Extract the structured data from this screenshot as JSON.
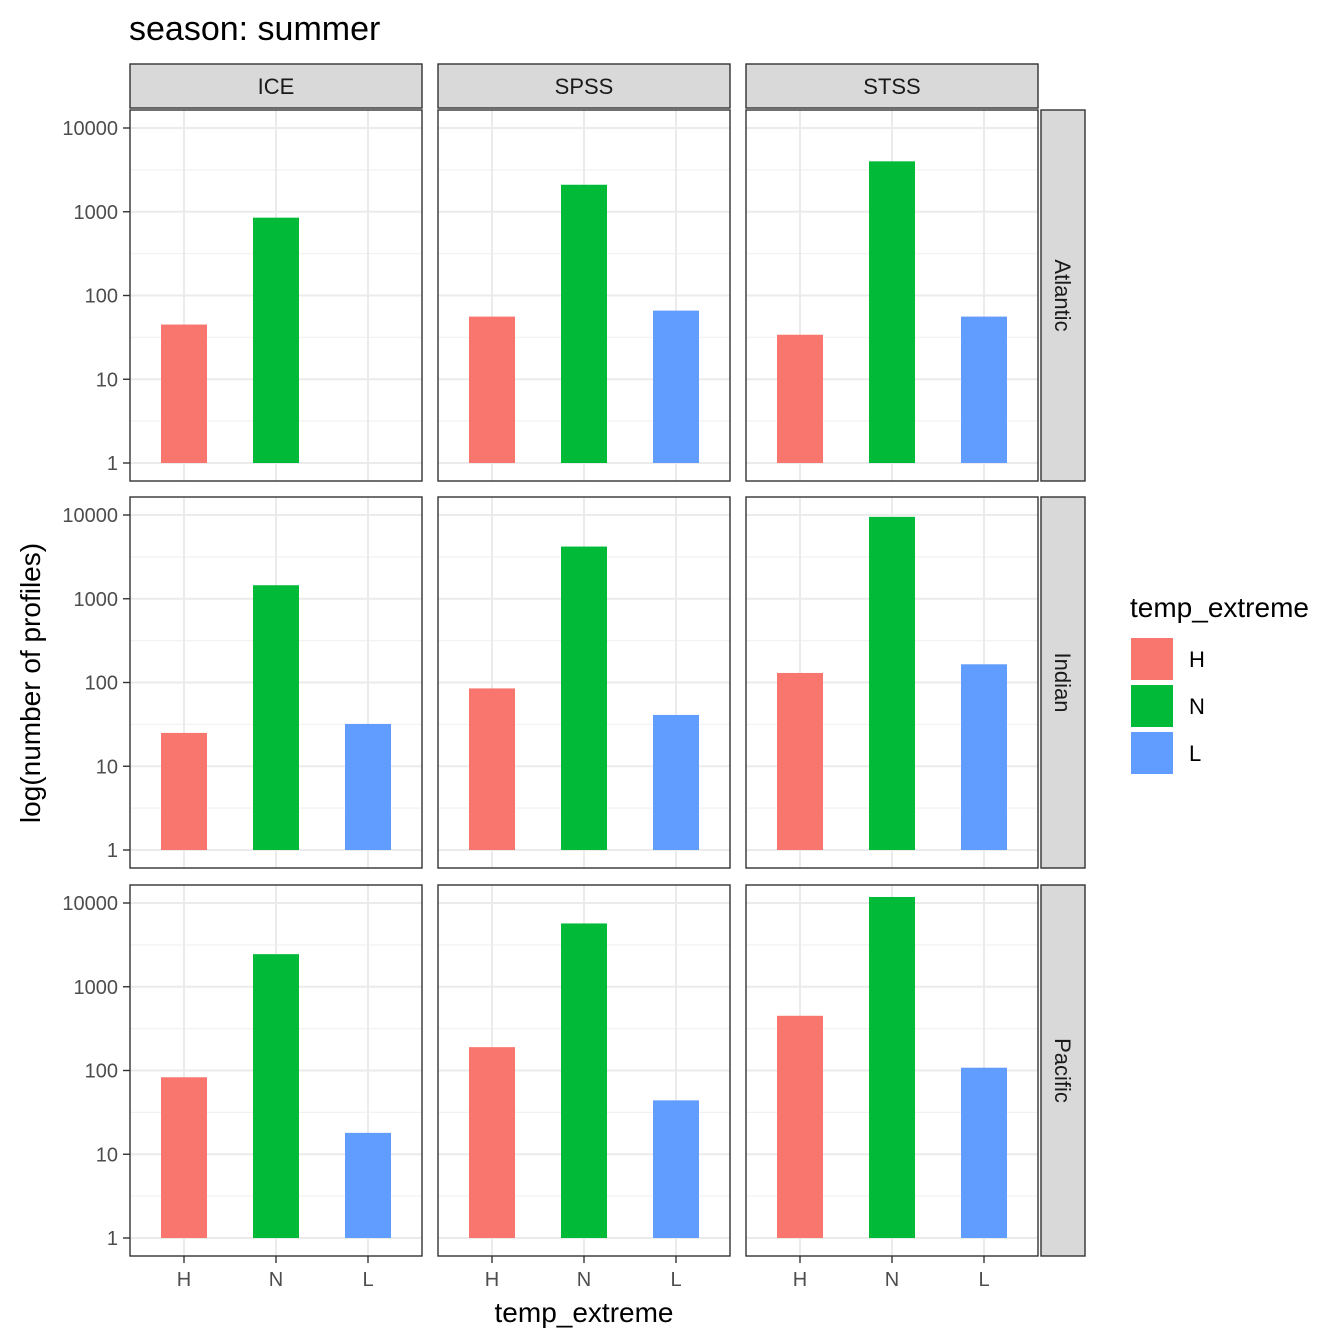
{
  "chart_data": {
    "type": "bar",
    "title": "season: summer",
    "xlabel": "temp_extreme",
    "ylabel": "log(number of profiles)",
    "y_scale": "log10",
    "ylim": [
      1,
      10000
    ],
    "y_ticks": [
      1,
      10,
      100,
      1000,
      10000
    ],
    "y_tick_labels": [
      "1",
      "10",
      "100",
      "1000",
      "10000"
    ],
    "categories": [
      "H",
      "N",
      "L"
    ],
    "col_facets": [
      "ICE",
      "SPSS",
      "STSS"
    ],
    "row_facets": [
      "Atlantic",
      "Indian",
      "Pacific"
    ],
    "grid": true,
    "legend": {
      "title": "temp_extreme",
      "position": "right",
      "entries": [
        "H",
        "N",
        "L"
      ]
    },
    "colors": {
      "H": "#F8766D",
      "N": "#00BA38",
      "L": "#619CFF"
    },
    "panels": [
      {
        "row": "Atlantic",
        "col": "ICE",
        "values": {
          "H": 45,
          "N": 850,
          "L": null
        }
      },
      {
        "row": "Atlantic",
        "col": "SPSS",
        "values": {
          "H": 56,
          "N": 2100,
          "L": 66
        }
      },
      {
        "row": "Atlantic",
        "col": "STSS",
        "values": {
          "H": 34,
          "N": 4000,
          "L": 56
        }
      },
      {
        "row": "Indian",
        "col": "ICE",
        "values": {
          "H": 25,
          "N": 1450,
          "L": 32
        }
      },
      {
        "row": "Indian",
        "col": "SPSS",
        "values": {
          "H": 85,
          "N": 4200,
          "L": 41
        }
      },
      {
        "row": "Indian",
        "col": "STSS",
        "values": {
          "H": 130,
          "N": 9500,
          "L": 165
        }
      },
      {
        "row": "Pacific",
        "col": "ICE",
        "values": {
          "H": 83,
          "N": 2450,
          "L": 18
        }
      },
      {
        "row": "Pacific",
        "col": "SPSS",
        "values": {
          "H": 190,
          "N": 5700,
          "L": 44
        }
      },
      {
        "row": "Pacific",
        "col": "STSS",
        "values": {
          "H": 450,
          "N": 11800,
          "L": 108
        }
      }
    ]
  }
}
